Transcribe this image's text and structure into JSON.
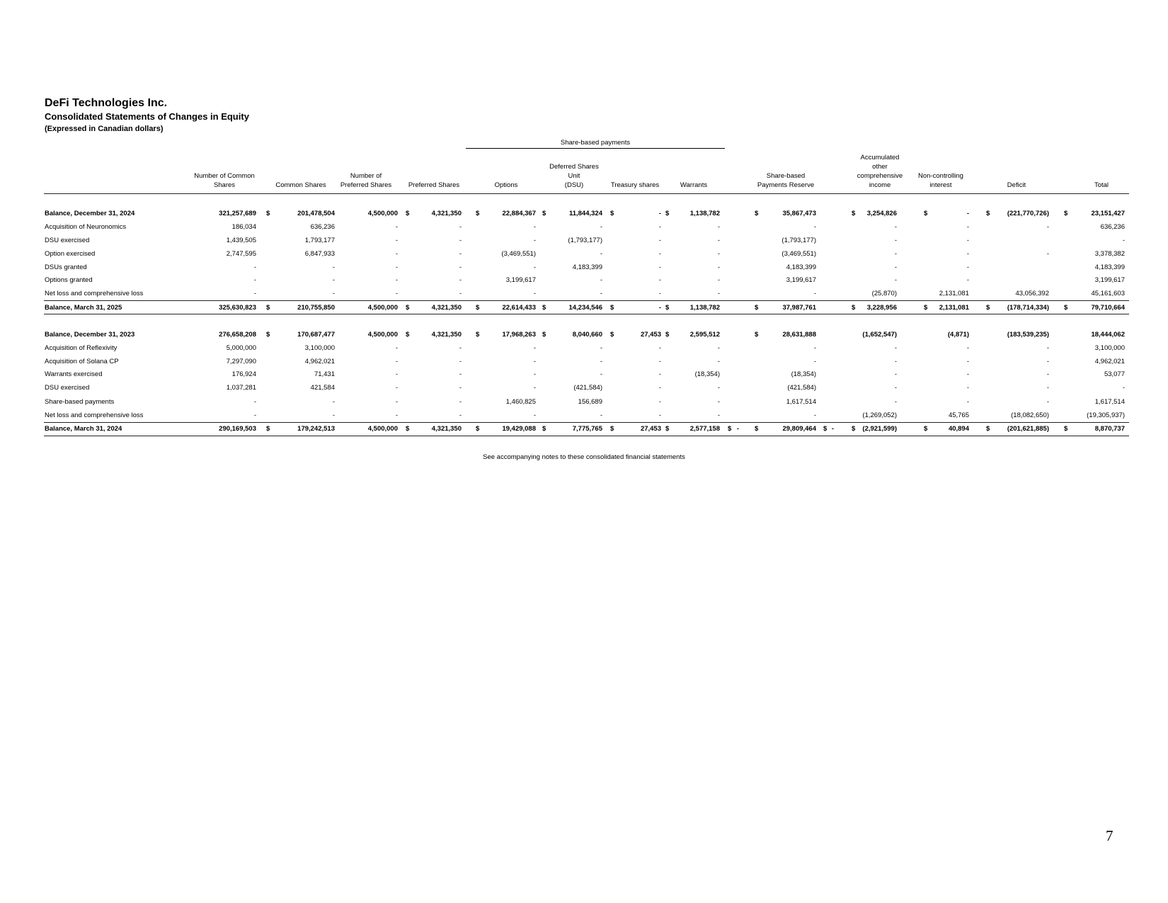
{
  "header": {
    "company": "DeFi Technologies Inc.",
    "statement": "Consolidated Statements of Changes in Equity",
    "currency_note": "(Expressed in Canadian dollars)"
  },
  "equity": {
    "group_label": "Share-based payments",
    "currency_symbol": "$",
    "columns": [
      {
        "key": "ncommon",
        "label": "Number of Common\nShares"
      },
      {
        "key": "common",
        "label": "Common Shares"
      },
      {
        "key": "npref",
        "label": "Number of\nPreferred Shares"
      },
      {
        "key": "pref",
        "label": "Preferred Shares"
      },
      {
        "key": "options",
        "label": "Options"
      },
      {
        "key": "dsu",
        "label": "Deferred Shares\nUnit\n(DSU)"
      },
      {
        "key": "treasury",
        "label": "Treasury shares"
      },
      {
        "key": "warrants",
        "label": "Warrants"
      },
      {
        "key": "gap1",
        "label": ""
      },
      {
        "key": "sbpr",
        "label": "Share-based\nPayments Reserve"
      },
      {
        "key": "gap2",
        "label": ""
      },
      {
        "key": "aoci",
        "label": "Accumulated\nother\ncomprehensive\nincome"
      },
      {
        "key": "nci",
        "label": "Non-controlling\ninterest"
      },
      {
        "key": "deficit",
        "label": "Deficit"
      },
      {
        "key": "total",
        "label": "Total"
      }
    ],
    "rows": [
      {
        "label": "Balance, December 31, 2024",
        "bold": true,
        "dollars": [
          "common",
          "pref",
          "options",
          "dsu",
          "treasury",
          "warrants",
          "sbpr",
          "aoci",
          "nci",
          "deficit",
          "total"
        ],
        "values": [
          "321,257,689",
          "201,478,504",
          "4,500,000",
          "4,321,350",
          "22,884,367",
          "11,844,324",
          "-",
          "1,138,782",
          "",
          "35,867,473",
          "",
          "3,254,826",
          "-",
          "(221,770,726)",
          "23,151,427"
        ]
      },
      {
        "label": "Acquisition of Neuronomics",
        "dollars": [],
        "values": [
          "186,034",
          "636,236",
          "-",
          "-",
          "-",
          "-",
          "-",
          "-",
          "",
          "-",
          "",
          "-",
          "-",
          "-",
          "636,236"
        ]
      },
      {
        "label": "DSU exercised",
        "dollars": [],
        "values": [
          "1,439,505",
          "1,793,177",
          "-",
          "-",
          "-",
          "(1,793,177)",
          "-",
          "-",
          "",
          "(1,793,177)",
          "",
          "-",
          "-",
          "",
          "-"
        ]
      },
      {
        "label": "Option exercised",
        "dollars": [],
        "values": [
          "2,747,595",
          "6,847,933",
          "-",
          "-",
          "(3,469,551)",
          "-",
          "-",
          "-",
          "",
          "(3,469,551)",
          "",
          "-",
          "-",
          "-",
          "3,378,382"
        ]
      },
      {
        "label": "DSUs granted",
        "dollars": [],
        "values": [
          "-",
          "-",
          "-",
          "-",
          "-",
          "4,183,399",
          "-",
          "-",
          "",
          "4,183,399",
          "",
          "-",
          "-",
          "",
          "4,183,399"
        ]
      },
      {
        "label": "Options granted",
        "dollars": [],
        "values": [
          "-",
          "-",
          "-",
          "-",
          "3,199,617",
          "-",
          "-",
          "-",
          "",
          "3,199,617",
          "",
          "-",
          "-",
          "",
          "3,199,617"
        ]
      },
      {
        "label": "Net loss and comprehensive loss",
        "dollars": [],
        "values": [
          "-",
          "-",
          "-",
          "-",
          "-",
          "-",
          "-",
          "-",
          "",
          "-",
          "",
          "(25,870)",
          "2,131,081",
          "43,056,392",
          "45,161,603"
        ]
      },
      {
        "label": "Balance, March 31, 2025",
        "bold": true,
        "dollars": [
          "common",
          "pref",
          "options",
          "dsu",
          "treasury",
          "warrants",
          "sbpr",
          "aoci",
          "nci",
          "deficit",
          "total"
        ],
        "values": [
          "325,630,823",
          "210,755,850",
          "4,500,000",
          "4,321,350",
          "22,614,433",
          "14,234,546",
          "-",
          "1,138,782",
          "",
          "37,987,761",
          "",
          "3,228,956",
          "2,131,081",
          "(178,714,334)",
          "79,710,664"
        ]
      },
      {
        "label": "Balance, December 31, 2023",
        "bold": true,
        "dollars": [
          "common",
          "pref",
          "options",
          "dsu",
          "treasury",
          "warrants",
          "sbpr"
        ],
        "values": [
          "276,658,208",
          "170,687,477",
          "4,500,000",
          "4,321,350",
          "17,968,263",
          "8,040,660",
          "27,453",
          "2,595,512",
          "",
          "28,631,888",
          "",
          "(1,652,547)",
          "(4,871)",
          "(183,539,235)",
          "18,444,062"
        ]
      },
      {
        "label": "Acquisition of Reflexivity",
        "dollars": [],
        "values": [
          "5,000,000",
          "3,100,000",
          "-",
          "-",
          "-",
          "-",
          "-",
          "-",
          "",
          "-",
          "",
          "-",
          "-",
          "-",
          "3,100,000"
        ]
      },
      {
        "label": "Acquisition of Solana CP",
        "dollars": [],
        "values": [
          "7,297,090",
          "4,962,021",
          "-",
          "-",
          "-",
          "-",
          "-",
          "-",
          "",
          "-",
          "",
          "-",
          "-",
          "-",
          "4,962,021"
        ]
      },
      {
        "label": "Warrants exercised",
        "dollars": [],
        "values": [
          "176,924",
          "71,431",
          "-",
          "-",
          "-",
          "-",
          "-",
          "(18,354)",
          "",
          "(18,354)",
          "",
          "-",
          "-",
          "-",
          "53,077"
        ]
      },
      {
        "label": "DSU exercised",
        "dollars": [],
        "values": [
          "1,037,281",
          "421,584",
          "-",
          "-",
          "-",
          "(421,584)",
          "-",
          "-",
          "",
          "(421,584)",
          "",
          "-",
          "-",
          "-",
          "-"
        ]
      },
      {
        "label": "Share-based payments",
        "dollars": [],
        "values": [
          "-",
          "-",
          "-",
          "-",
          "1,460,825",
          "156,689",
          "-",
          "-",
          "",
          "1,617,514",
          "",
          "-",
          "-",
          "-",
          "1,617,514"
        ]
      },
      {
        "label": "Net loss and comprehensive loss",
        "dollars": [],
        "values": [
          "-",
          "-",
          "-",
          "-",
          "-",
          "-",
          "-",
          "-",
          "",
          "-",
          "",
          "(1,269,052)",
          "45,765",
          "(18,082,650)",
          "(19,305,937)"
        ]
      },
      {
        "label": "Balance, March 31, 2024",
        "bold": true,
        "dollars": [
          "common",
          "pref",
          "options",
          "dsu",
          "treasury",
          "warrants",
          "gap1",
          "sbpr",
          "gap2",
          "aoci",
          "nci",
          "deficit",
          "total"
        ],
        "values": [
          "290,169,503",
          "179,242,513",
          "4,500,000",
          "4,321,350",
          "19,429,088",
          "7,775,765",
          "27,453",
          "2,577,158",
          "-",
          "29,809,464",
          "-",
          "(2,921,599)",
          "40,894",
          "(201,621,885)",
          "8,870,737"
        ]
      }
    ]
  },
  "footnote": "See accompanying notes to these consolidated financial statements",
  "page_number": "7"
}
